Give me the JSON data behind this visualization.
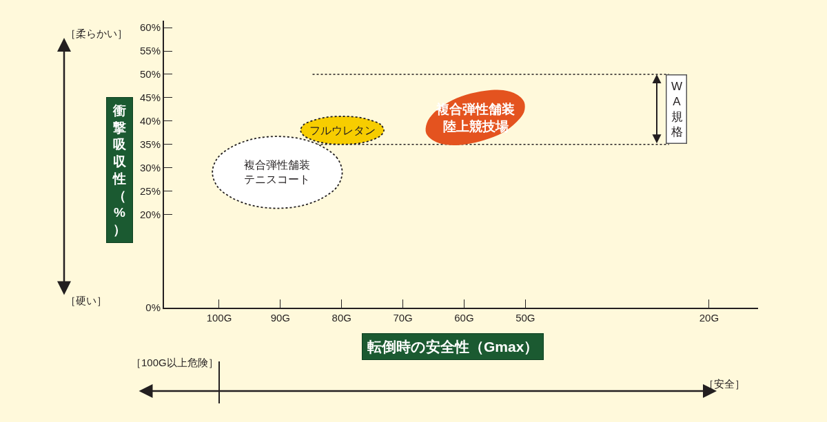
{
  "chart_data": {
    "type": "area",
    "xlabel": "転倒時の安全性（Gmax）",
    "ylabel": "衝撃吸収性（%）",
    "xlim": [
      109,
      12
    ],
    "xticks": [
      {
        "value": 100,
        "label": "100G"
      },
      {
        "value": 90,
        "label": "90G"
      },
      {
        "value": 80,
        "label": "80G"
      },
      {
        "value": 70,
        "label": "70G"
      },
      {
        "value": 60,
        "label": "60G"
      },
      {
        "value": 50,
        "label": "50G"
      },
      {
        "value": 20,
        "label": "20G"
      }
    ],
    "ylim": [
      0,
      61.5
    ],
    "yticks": [
      {
        "value": 0,
        "label": "0%"
      },
      {
        "value": 20,
        "label": "20%"
      },
      {
        "value": 25,
        "label": "25%"
      },
      {
        "value": 30,
        "label": "30%"
      },
      {
        "value": 35,
        "label": "35%"
      },
      {
        "value": 40,
        "label": "40%"
      },
      {
        "value": 45,
        "label": "45%"
      },
      {
        "value": 50,
        "label": "50%"
      },
      {
        "value": 55,
        "label": "55%"
      },
      {
        "value": 60,
        "label": "60%"
      }
    ],
    "series": [
      {
        "name": "複合弾性舗装テニスコート",
        "color": "#ffffff",
        "line_style": "dotted",
        "x": [
          79.9,
          80.7,
          83.0,
          86.4,
          90.5,
          94.6,
          98.0,
          100.3,
          101.1,
          100.3,
          98.0,
          94.6,
          90.5,
          86.4,
          83.0,
          80.7,
          79.9
        ],
        "values": [
          29.0,
          32.0,
          34.4,
          36.1,
          36.7,
          36.1,
          34.4,
          32.0,
          29.0,
          26.0,
          23.6,
          21.9,
          21.3,
          21.9,
          23.6,
          26.0,
          29.0
        ]
      },
      {
        "name": "フルウレタン",
        "color": "#f7cd00",
        "line_style": "dotted",
        "x": [
          73.1,
          73.6,
          75.1,
          77.3,
          79.9,
          82.5,
          84.7,
          86.2,
          86.7,
          86.2,
          84.7,
          82.5,
          79.9,
          77.3,
          75.1,
          73.6,
          73.1
        ],
        "values": [
          38.0,
          39.2,
          40.1,
          40.8,
          41.0,
          40.8,
          40.1,
          39.2,
          38.0,
          36.9,
          35.9,
          35.2,
          35.0,
          35.2,
          35.9,
          36.9,
          38.0
        ]
      },
      {
        "name": "複合弾性舗装陸上競技場",
        "color": "#e4531f",
        "x": [
          50.2,
          50.2,
          51.5,
          53.7,
          56.7,
          59.8,
          62.8,
          65.0,
          66.2,
          66.1,
          64.9,
          62.6,
          59.7,
          56.5,
          53.6,
          51.4,
          50.2
        ],
        "values": [
          44.1,
          42.0,
          39.7,
          37.5,
          35.9,
          35.0,
          34.9,
          35.8,
          37.4,
          39.5,
          41.8,
          44.0,
          45.6,
          46.5,
          46.6,
          45.7,
          44.1
        ]
      }
    ],
    "ref_lines": [
      {
        "axis": "y",
        "value": 50,
        "label": "WA規格",
        "line_style": "dotted"
      },
      {
        "axis": "y",
        "value": 35,
        "line_style": "dotted"
      },
      {
        "axis": "x",
        "value": 100,
        "label": "［100G以上危険］"
      }
    ],
    "annotations": [
      "［柔らかい］",
      "［硬い］",
      "［安全］"
    ]
  }
}
